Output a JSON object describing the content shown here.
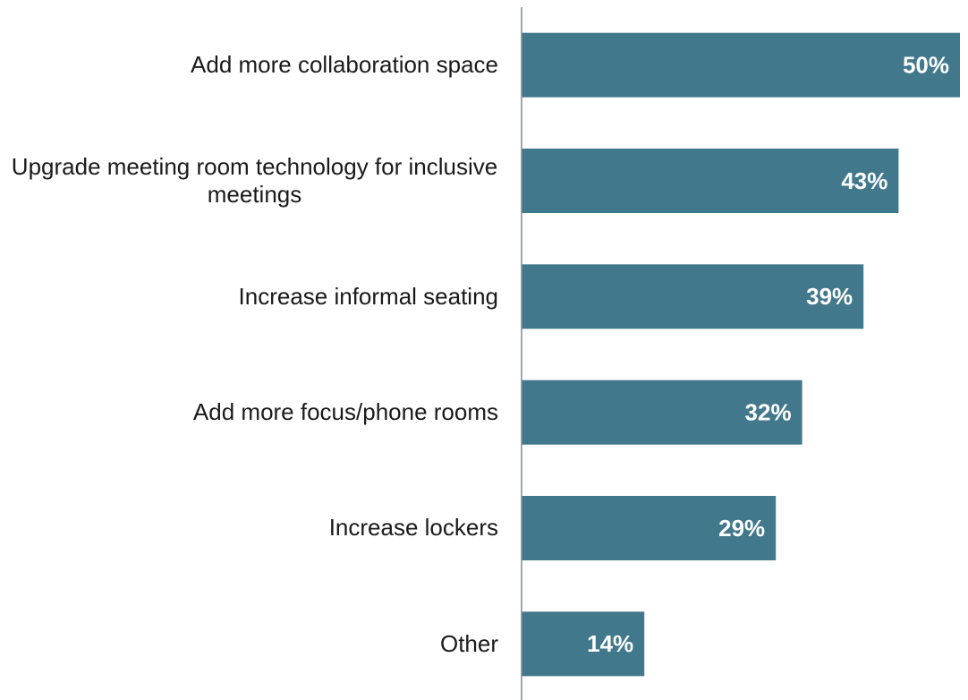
{
  "chart_data": {
    "type": "hbar",
    "categories": [
      "Add more collaboration space",
      "Upgrade meeting room technology for inclusive meetings",
      "Increase informal seating",
      "Add more focus/phone rooms",
      "Increase lockers",
      "Other"
    ],
    "values": [
      50,
      43,
      39,
      32,
      29,
      14
    ],
    "value_labels": [
      "50%",
      "43%",
      "39%",
      "32%",
      "29%",
      "14%"
    ],
    "color": "#41788b",
    "xlim": [
      0,
      50
    ]
  }
}
